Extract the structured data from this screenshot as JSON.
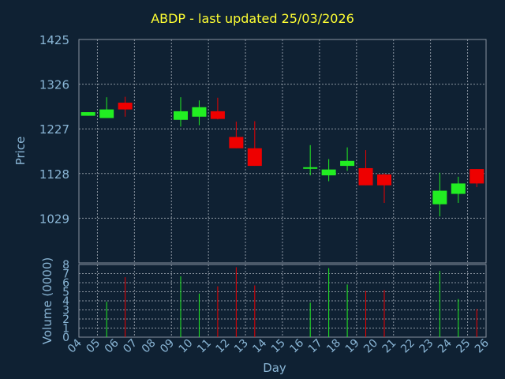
{
  "chart_data": {
    "type": "candlestick",
    "title": "ABDP - last updated 25/03/2026",
    "ylabel": "Price",
    "ylabel_volume": "Volume (0000)",
    "xlabel": "Day",
    "ylim": [
      930,
      1425
    ],
    "y_ticks": [
      "1425",
      "1326",
      "1227",
      "1128",
      "1029"
    ],
    "y_tick_values": [
      1425,
      1326,
      1227,
      1128,
      1029
    ],
    "volume_ylim": [
      0,
      8
    ],
    "volume_ticks": [
      "0",
      "1",
      "2",
      "3",
      "4",
      "5",
      "6",
      "7",
      "8"
    ],
    "x_ticks": [
      "04",
      "05",
      "06",
      "07",
      "08",
      "09",
      "10",
      "11",
      "12",
      "13",
      "14",
      "15",
      "16",
      "17",
      "18",
      "19",
      "20",
      "21",
      "22",
      "23",
      "24",
      "25",
      "26"
    ],
    "grid": true,
    "colors": {
      "background": "#0f2133",
      "up": "#22ee22",
      "down": "#ee0000",
      "axis_text": "#8ab6d6",
      "title": "#ffff33",
      "grid": "#8a94a0"
    },
    "candles": [
      {
        "day": "04",
        "open": 1256,
        "close": 1264,
        "high": 1264,
        "low": 1256,
        "volume": 0
      },
      {
        "day": "05",
        "open": 1251,
        "close": 1270,
        "high": 1297,
        "low": 1251,
        "volume": 3.9
      },
      {
        "day": "06",
        "open": 1285,
        "close": 1270,
        "high": 1298,
        "low": 1254,
        "volume": 6.6
      },
      {
        "day": "09",
        "open": 1247,
        "close": 1266,
        "high": 1297,
        "low": 1232,
        "volume": 6.7
      },
      {
        "day": "10",
        "open": 1254,
        "close": 1275,
        "high": 1290,
        "low": 1235,
        "volume": 4.8
      },
      {
        "day": "11",
        "open": 1266,
        "close": 1249,
        "high": 1296,
        "low": 1248,
        "volume": 5.6
      },
      {
        "day": "12",
        "open": 1209,
        "close": 1184,
        "high": 1243,
        "low": 1184,
        "volume": 7.7
      },
      {
        "day": "13",
        "open": 1184,
        "close": 1145,
        "high": 1244,
        "low": 1145,
        "volume": 5.7
      },
      {
        "day": "16",
        "open": 1140,
        "close": 1142,
        "high": 1191,
        "low": 1124,
        "volume": 3.8
      },
      {
        "day": "17",
        "open": 1124,
        "close": 1137,
        "high": 1160,
        "low": 1111,
        "volume": 7.6
      },
      {
        "day": "18",
        "open": 1145,
        "close": 1156,
        "high": 1186,
        "low": 1134,
        "volume": 5.8
      },
      {
        "day": "19",
        "open": 1140,
        "close": 1102,
        "high": 1180,
        "low": 1102,
        "volume": 5.1
      },
      {
        "day": "20",
        "open": 1126,
        "close": 1102,
        "high": 1128,
        "low": 1063,
        "volume": 5.2
      },
      {
        "day": "23",
        "open": 1060,
        "close": 1090,
        "high": 1130,
        "low": 1033,
        "volume": 7.3
      },
      {
        "day": "24",
        "open": 1083,
        "close": 1106,
        "high": 1121,
        "low": 1063,
        "volume": 4.2
      },
      {
        "day": "25",
        "open": 1138,
        "close": 1106,
        "high": 1138,
        "low": 1098,
        "volume": 3.1
      }
    ]
  }
}
